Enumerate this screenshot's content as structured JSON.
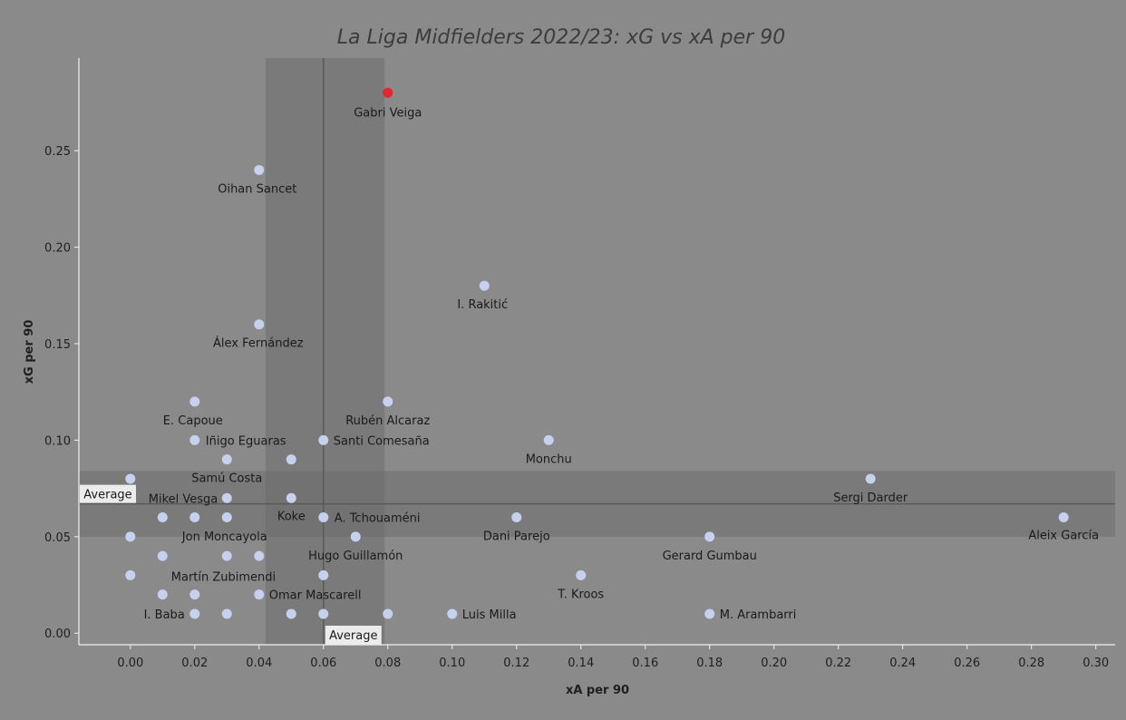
{
  "chart_data": {
    "type": "scatter",
    "title": "La Liga Midfielders 2022/23: xG vs xA per 90",
    "xlabel": "xA per 90",
    "ylabel": "xG per 90",
    "xlim": [
      -0.016,
      0.306
    ],
    "ylim": [
      -0.006,
      0.298
    ],
    "xticks": [
      "0.00",
      "0.02",
      "0.04",
      "0.06",
      "0.08",
      "0.10",
      "0.12",
      "0.14",
      "0.16",
      "0.18",
      "0.20",
      "0.22",
      "0.24",
      "0.26",
      "0.28",
      "0.30"
    ],
    "yticks": [
      "0.00",
      "0.05",
      "0.10",
      "0.15",
      "0.20",
      "0.25"
    ],
    "grid": false,
    "average": {
      "label": "Average",
      "x_mean": 0.06,
      "x_band": [
        0.042,
        0.079
      ],
      "y_mean": 0.067,
      "y_band": [
        0.05,
        0.084
      ]
    },
    "colors": {
      "point": "#c5d1ee",
      "highlight": "#e3272f",
      "band": "#6a6a6a",
      "mean_line": "#5a5a5a"
    },
    "points": [
      {
        "x": 0.08,
        "y": 0.28,
        "label": "Gabri Veiga",
        "highlight": true
      },
      {
        "x": 0.04,
        "y": 0.24,
        "label": "Oihan Sancet"
      },
      {
        "x": 0.11,
        "y": 0.18,
        "label": "I. Rakitić"
      },
      {
        "x": 0.04,
        "y": 0.16,
        "label": "Álex Fernández"
      },
      {
        "x": 0.02,
        "y": 0.12,
        "label": "E. Capoue"
      },
      {
        "x": 0.08,
        "y": 0.12,
        "label": "Rubén Alcaraz"
      },
      {
        "x": 0.13,
        "y": 0.1,
        "label": "Monchu"
      },
      {
        "x": 0.02,
        "y": 0.1,
        "label": "Iñigo Eguaras"
      },
      {
        "x": 0.06,
        "y": 0.1,
        "label": "Santi Comesaña"
      },
      {
        "x": 0.03,
        "y": 0.09,
        "label": "Samú Costa"
      },
      {
        "x": 0.05,
        "y": 0.09,
        "label": ""
      },
      {
        "x": 0.0,
        "y": 0.08,
        "label": ""
      },
      {
        "x": 0.23,
        "y": 0.08,
        "label": "Sergi Darder"
      },
      {
        "x": 0.03,
        "y": 0.07,
        "label": "Mikel Vesga"
      },
      {
        "x": 0.05,
        "y": 0.07,
        "label": "Koke"
      },
      {
        "x": 0.01,
        "y": 0.06,
        "label": ""
      },
      {
        "x": 0.02,
        "y": 0.06,
        "label": ""
      },
      {
        "x": 0.03,
        "y": 0.06,
        "label": ""
      },
      {
        "x": 0.06,
        "y": 0.06,
        "label": "A. Tchouaméni"
      },
      {
        "x": 0.12,
        "y": 0.06,
        "label": "Dani Parejo"
      },
      {
        "x": 0.29,
        "y": 0.06,
        "label": "Aleix García"
      },
      {
        "x": 0.0,
        "y": 0.05,
        "label": "Jon Moncayola"
      },
      {
        "x": 0.07,
        "y": 0.05,
        "label": "Hugo Guillamón"
      },
      {
        "x": 0.18,
        "y": 0.05,
        "label": "Gerard Gumbau"
      },
      {
        "x": 0.01,
        "y": 0.04,
        "label": ""
      },
      {
        "x": 0.03,
        "y": 0.04,
        "label": ""
      },
      {
        "x": 0.04,
        "y": 0.04,
        "label": ""
      },
      {
        "x": 0.0,
        "y": 0.03,
        "label": "Martín Zubimendi"
      },
      {
        "x": 0.06,
        "y": 0.03,
        "label": ""
      },
      {
        "x": 0.14,
        "y": 0.03,
        "label": "T. Kroos"
      },
      {
        "x": 0.01,
        "y": 0.02,
        "label": ""
      },
      {
        "x": 0.02,
        "y": 0.02,
        "label": ""
      },
      {
        "x": 0.04,
        "y": 0.02,
        "label": "Omar Mascarell"
      },
      {
        "x": 0.02,
        "y": 0.01,
        "label": "I. Baba"
      },
      {
        "x": 0.03,
        "y": 0.01,
        "label": ""
      },
      {
        "x": 0.05,
        "y": 0.01,
        "label": ""
      },
      {
        "x": 0.06,
        "y": 0.01,
        "label": ""
      },
      {
        "x": 0.08,
        "y": 0.01,
        "label": ""
      },
      {
        "x": 0.1,
        "y": 0.01,
        "label": "Luis Milla"
      },
      {
        "x": 0.18,
        "y": 0.01,
        "label": "M. Arambarri"
      }
    ]
  }
}
